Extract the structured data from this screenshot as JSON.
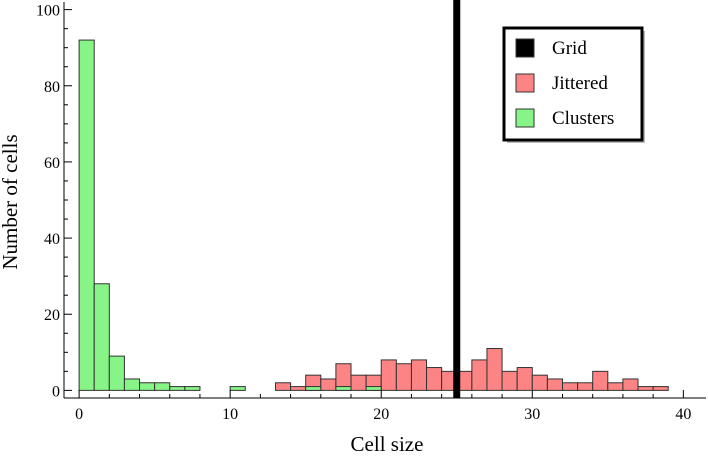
{
  "chart_data": {
    "type": "bar",
    "title": "",
    "xlabel": "Cell size",
    "ylabel": "Number of cells",
    "xlim": [
      -1,
      41.5
    ],
    "ylim": [
      -2,
      102
    ],
    "xticks": [
      0,
      10,
      20,
      30,
      40
    ],
    "yticks": [
      0,
      20,
      40,
      60,
      80,
      100
    ],
    "bin_width": 1,
    "grid": false,
    "legend_position": "top-right",
    "series": [
      {
        "name": "Grid",
        "kind": "vline",
        "x": 25,
        "color": "#000000"
      },
      {
        "name": "Jittered",
        "kind": "histogram",
        "color": "#fd8484",
        "bins": [
          {
            "x": 13,
            "count": 2
          },
          {
            "x": 14,
            "count": 1
          },
          {
            "x": 15,
            "count": 4
          },
          {
            "x": 16,
            "count": 3
          },
          {
            "x": 17,
            "count": 7
          },
          {
            "x": 18,
            "count": 4
          },
          {
            "x": 19,
            "count": 4
          },
          {
            "x": 20,
            "count": 8
          },
          {
            "x": 21,
            "count": 7
          },
          {
            "x": 22,
            "count": 8
          },
          {
            "x": 23,
            "count": 6
          },
          {
            "x": 24,
            "count": 5
          },
          {
            "x": 25,
            "count": 5
          },
          {
            "x": 26,
            "count": 8
          },
          {
            "x": 27,
            "count": 11
          },
          {
            "x": 28,
            "count": 5
          },
          {
            "x": 29,
            "count": 6
          },
          {
            "x": 30,
            "count": 4
          },
          {
            "x": 31,
            "count": 3
          },
          {
            "x": 32,
            "count": 2
          },
          {
            "x": 33,
            "count": 2
          },
          {
            "x": 34,
            "count": 5
          },
          {
            "x": 35,
            "count": 2
          },
          {
            "x": 36,
            "count": 3
          },
          {
            "x": 37,
            "count": 1
          },
          {
            "x": 38,
            "count": 1
          }
        ]
      },
      {
        "name": "Clusters",
        "kind": "histogram",
        "color": "#86f486",
        "bins": [
          {
            "x": 0,
            "count": 92
          },
          {
            "x": 1,
            "count": 28
          },
          {
            "x": 2,
            "count": 9
          },
          {
            "x": 3,
            "count": 3
          },
          {
            "x": 4,
            "count": 2
          },
          {
            "x": 5,
            "count": 2
          },
          {
            "x": 6,
            "count": 1
          },
          {
            "x": 7,
            "count": 1
          },
          {
            "x": 10,
            "count": 1
          },
          {
            "x": 15,
            "count": 1
          },
          {
            "x": 17,
            "count": 1
          },
          {
            "x": 19,
            "count": 1
          }
        ]
      }
    ]
  }
}
